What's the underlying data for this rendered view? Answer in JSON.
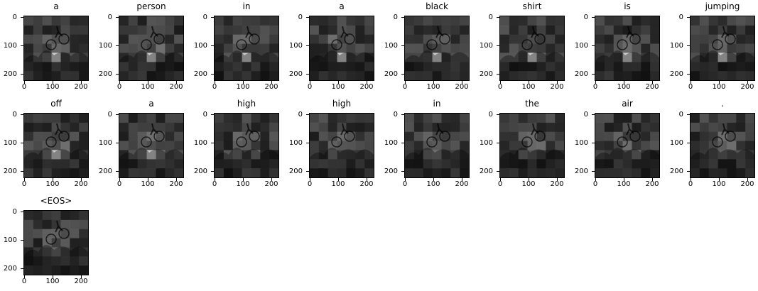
{
  "panels": [
    {
      "title": "a"
    },
    {
      "title": "person"
    },
    {
      "title": "in"
    },
    {
      "title": "a"
    },
    {
      "title": "black"
    },
    {
      "title": "shirt"
    },
    {
      "title": "is"
    },
    {
      "title": "jumping"
    },
    {
      "title": "off"
    },
    {
      "title": "a"
    },
    {
      "title": "high"
    },
    {
      "title": "high"
    },
    {
      "title": "in"
    },
    {
      "title": "the"
    },
    {
      "title": "air"
    },
    {
      "title": "."
    },
    {
      "title": "<EOS>"
    }
  ],
  "axes": {
    "x_ticks": [
      "0",
      "100",
      "200"
    ],
    "y_ticks": [
      "0",
      "100",
      "200"
    ]
  },
  "colors": {
    "axis": "#000000",
    "background": "#ffffff"
  }
}
